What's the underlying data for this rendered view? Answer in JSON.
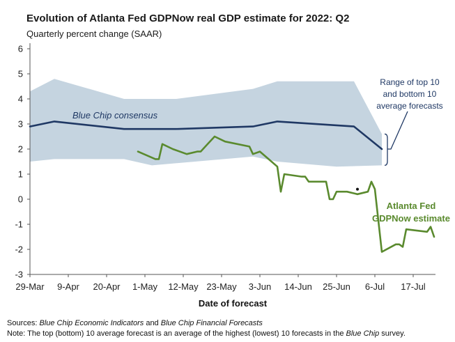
{
  "chart_data": {
    "type": "line",
    "title": "Evolution of Atlanta Fed GDPNow real GDP estimate for 2022: Q2",
    "subtitle": "Quarterly percent change (SAAR)",
    "xlabel": "Date of forecast",
    "ylabel": "",
    "ylim": [
      -3,
      6
    ],
    "yticks": [
      "6",
      "5",
      "4",
      "3",
      "2",
      "1",
      "0",
      "-1",
      "-2",
      "-3"
    ],
    "xlim": [
      "2022-03-29",
      "2022-07-20"
    ],
    "xticks": [
      {
        "date": "2022-03-29",
        "label": "29-Mar"
      },
      {
        "date": "2022-04-09",
        "label": "9-Apr"
      },
      {
        "date": "2022-04-20",
        "label": "20-Apr"
      },
      {
        "date": "2022-05-01",
        "label": "1-May"
      },
      {
        "date": "2022-05-12",
        "label": "12-May"
      },
      {
        "date": "2022-05-23",
        "label": "23-May"
      },
      {
        "date": "2022-06-03",
        "label": "3-Jun"
      },
      {
        "date": "2022-06-14",
        "label": "14-Jun"
      },
      {
        "date": "2022-06-25",
        "label": "25-Jun"
      },
      {
        "date": "2022-07-06",
        "label": "6-Jul"
      },
      {
        "date": "2022-07-17",
        "label": "17-Jul"
      }
    ],
    "grid": false,
    "series": [
      {
        "name": "Blue Chip consensus",
        "color": "#1f3864",
        "points": [
          {
            "x": "2022-03-29",
            "y": 2.9
          },
          {
            "x": "2022-04-05",
            "y": 3.1
          },
          {
            "x": "2022-04-25",
            "y": 2.8
          },
          {
            "x": "2022-05-10",
            "y": 2.8
          },
          {
            "x": "2022-06-01",
            "y": 2.9
          },
          {
            "x": "2022-06-08",
            "y": 3.1
          },
          {
            "x": "2022-06-30",
            "y": 2.9
          },
          {
            "x": "2022-07-08",
            "y": 2.0
          }
        ]
      },
      {
        "name": "Range of top 10 and bottom 10 average forecasts",
        "color": "#c5d4e0",
        "upper": [
          {
            "x": "2022-03-29",
            "y": 4.3
          },
          {
            "x": "2022-04-05",
            "y": 4.8
          },
          {
            "x": "2022-04-25",
            "y": 4.0
          },
          {
            "x": "2022-05-10",
            "y": 4.0
          },
          {
            "x": "2022-06-01",
            "y": 4.4
          },
          {
            "x": "2022-06-08",
            "y": 4.7
          },
          {
            "x": "2022-06-30",
            "y": 4.7
          },
          {
            "x": "2022-07-08",
            "y": 2.6
          }
        ],
        "lower": [
          {
            "x": "2022-03-29",
            "y": 1.5
          },
          {
            "x": "2022-04-05",
            "y": 1.6
          },
          {
            "x": "2022-04-25",
            "y": 1.6
          },
          {
            "x": "2022-05-03",
            "y": 1.35
          },
          {
            "x": "2022-06-01",
            "y": 1.7
          },
          {
            "x": "2022-06-08",
            "y": 1.5
          },
          {
            "x": "2022-06-25",
            "y": 1.3
          },
          {
            "x": "2022-07-08",
            "y": 1.35
          }
        ]
      },
      {
        "name": "Atlanta Fed GDPNow estimate",
        "color": "#5a8a2e",
        "points": [
          {
            "x": "2022-04-29",
            "y": 1.9
          },
          {
            "x": "2022-05-04",
            "y": 1.6
          },
          {
            "x": "2022-05-05",
            "y": 1.6
          },
          {
            "x": "2022-05-06",
            "y": 2.2
          },
          {
            "x": "2022-05-09",
            "y": 2.0
          },
          {
            "x": "2022-05-13",
            "y": 1.8
          },
          {
            "x": "2022-05-16",
            "y": 1.9
          },
          {
            "x": "2022-05-17",
            "y": 1.9
          },
          {
            "x": "2022-05-19",
            "y": 2.2
          },
          {
            "x": "2022-05-21",
            "y": 2.5
          },
          {
            "x": "2022-05-24",
            "y": 2.3
          },
          {
            "x": "2022-05-31",
            "y": 2.1
          },
          {
            "x": "2022-06-01",
            "y": 1.8
          },
          {
            "x": "2022-06-03",
            "y": 1.9
          },
          {
            "x": "2022-06-08",
            "y": 1.3
          },
          {
            "x": "2022-06-09",
            "y": 0.3
          },
          {
            "x": "2022-06-10",
            "y": 1.0
          },
          {
            "x": "2022-06-15",
            "y": 0.9
          },
          {
            "x": "2022-06-16",
            "y": 0.9
          },
          {
            "x": "2022-06-17",
            "y": 0.7
          },
          {
            "x": "2022-06-22",
            "y": 0.7
          },
          {
            "x": "2022-06-23",
            "y": 0.0
          },
          {
            "x": "2022-06-24",
            "y": 0.0
          },
          {
            "x": "2022-06-25",
            "y": 0.3
          },
          {
            "x": "2022-06-28",
            "y": 0.3
          },
          {
            "x": "2022-07-01",
            "y": 0.2
          },
          {
            "x": "2022-07-04",
            "y": 0.3
          },
          {
            "x": "2022-07-05",
            "y": 0.7
          },
          {
            "x": "2022-07-06",
            "y": 0.4
          },
          {
            "x": "2022-07-08",
            "y": -2.1
          },
          {
            "x": "2022-07-12",
            "y": -1.8
          },
          {
            "x": "2022-07-13",
            "y": -1.8
          },
          {
            "x": "2022-07-14",
            "y": -1.9
          },
          {
            "x": "2022-07-15",
            "y": -1.2
          },
          {
            "x": "2022-07-21",
            "y": -1.3
          },
          {
            "x": "2022-07-22",
            "y": -1.1
          },
          {
            "x": "2022-07-23",
            "y": -1.5
          },
          {
            "x": "2022-07-27",
            "y": -1.6
          }
        ]
      }
    ],
    "marker_point": {
      "x": "2022-07-01",
      "y": 0.4
    },
    "annotations": {
      "consensus_label": "Blue Chip consensus",
      "range_label": [
        "Range of top 10",
        "and bottom 10",
        "average forecasts"
      ],
      "gdpnow_label": [
        "Atlanta Fed",
        "GDPNow estimate"
      ]
    }
  },
  "footer": {
    "sources_prefix": "Sources: ",
    "sources_src1": "Blue Chip Economic Indicators",
    "sources_mid": " and ",
    "sources_src2": "Blue Chip Financial Forecasts",
    "note_prefix": "Note: The top (bottom) 10 average forecast is an average of the highest (lowest) 10 forecasts in the ",
    "note_src": "Blue Chip",
    "note_suffix": " survey."
  }
}
